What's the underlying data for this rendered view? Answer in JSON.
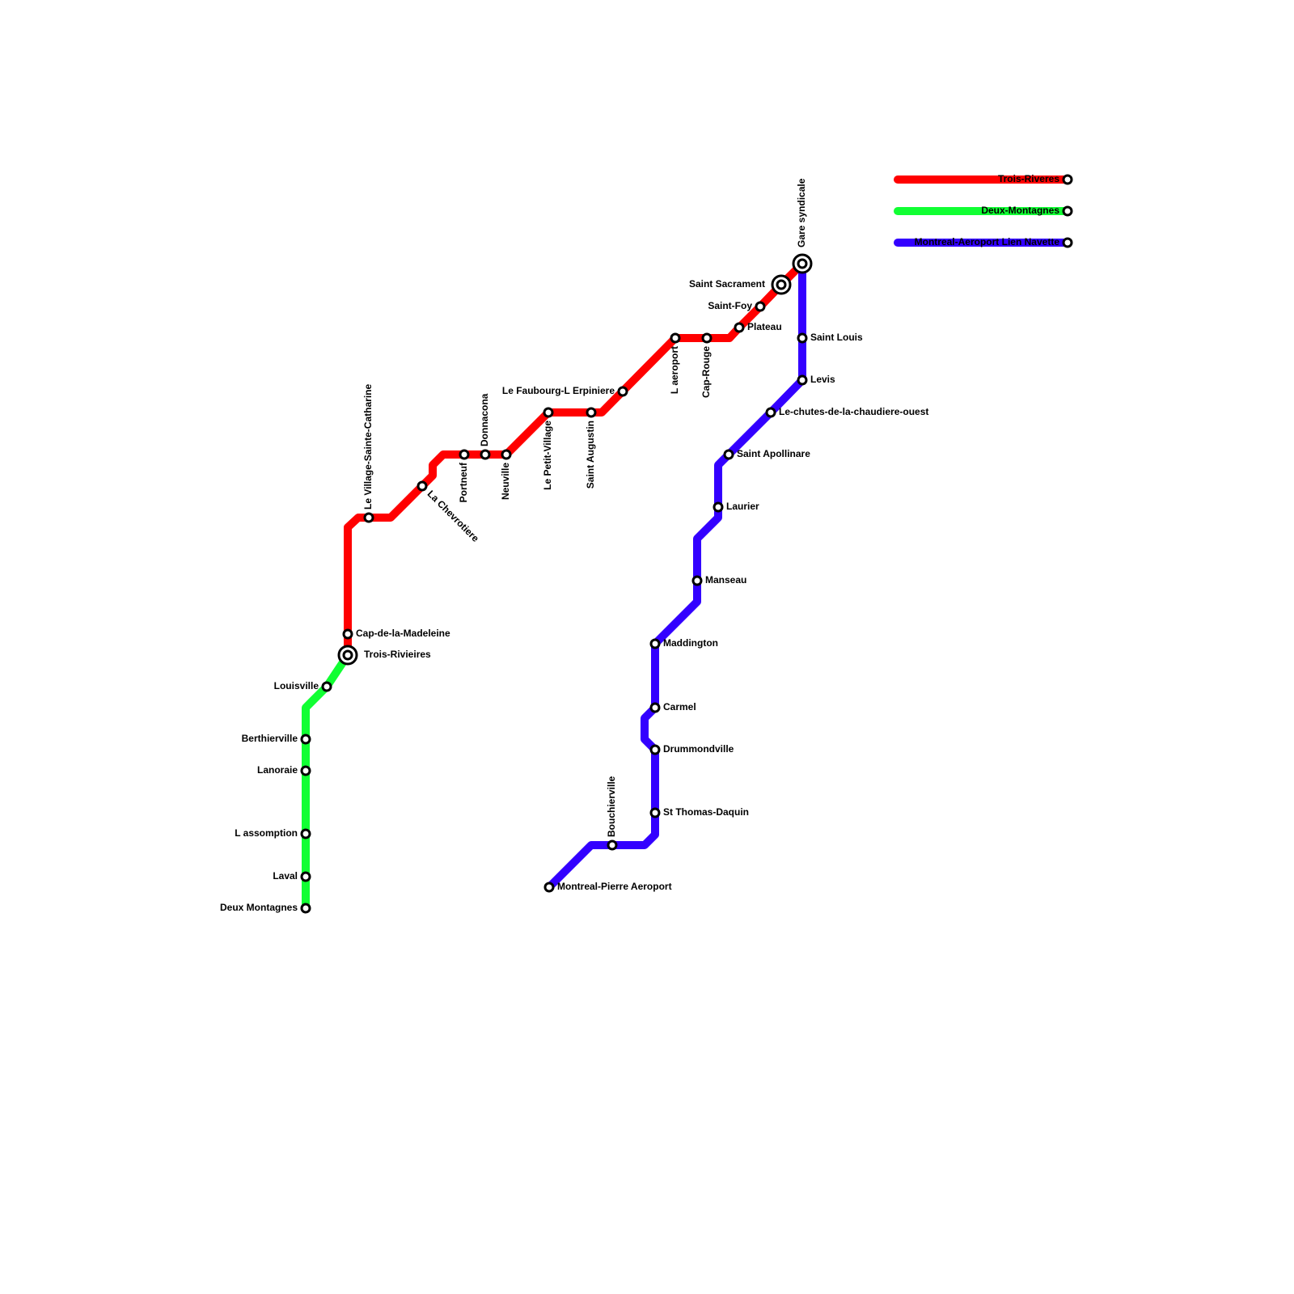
{
  "lines": [
    {
      "name": "Trois-Riveres",
      "color": "#ff0000"
    },
    {
      "name": "Deux-Montagnes",
      "color": "#11ff33"
    },
    {
      "name": "Montreal-Aeroport Lien Navette",
      "color": "#3300ff"
    }
  ],
  "stations": [
    {
      "name": "Trois-Rivieires"
    },
    {
      "name": "Cap-de-la-Madeleine"
    },
    {
      "name": "Le Village-Sainte-Catharine"
    },
    {
      "name": "La Chevrotiere"
    },
    {
      "name": "Portneuf"
    },
    {
      "name": "Donnacona"
    },
    {
      "name": "Neuville"
    },
    {
      "name": "Le Petit-Village"
    },
    {
      "name": "Saint Augustin"
    },
    {
      "name": "Le Faubourg-L Erpiniere"
    },
    {
      "name": "L aeroport"
    },
    {
      "name": "Cap-Rouge"
    },
    {
      "name": "Plateau"
    },
    {
      "name": "Saint-Foy"
    },
    {
      "name": "Saint Sacrament"
    },
    {
      "name": "Gare syndicale"
    },
    {
      "name": "Louisville"
    },
    {
      "name": "Berthierville"
    },
    {
      "name": "Lanoraie"
    },
    {
      "name": "L assomption"
    },
    {
      "name": "Laval"
    },
    {
      "name": "Deux Montagnes"
    },
    {
      "name": "Saint Louis"
    },
    {
      "name": "Levis"
    },
    {
      "name": "Le-chutes-de-la-chaudiere-ouest"
    },
    {
      "name": "Saint Apollinare"
    },
    {
      "name": "Laurier"
    },
    {
      "name": "Manseau"
    },
    {
      "name": "Maddington"
    },
    {
      "name": "Carmel"
    },
    {
      "name": "Drummondville"
    },
    {
      "name": "St Thomas-Daquin"
    },
    {
      "name": "Bouchierville"
    },
    {
      "name": "Montreal-Pierre Aeroport"
    }
  ]
}
